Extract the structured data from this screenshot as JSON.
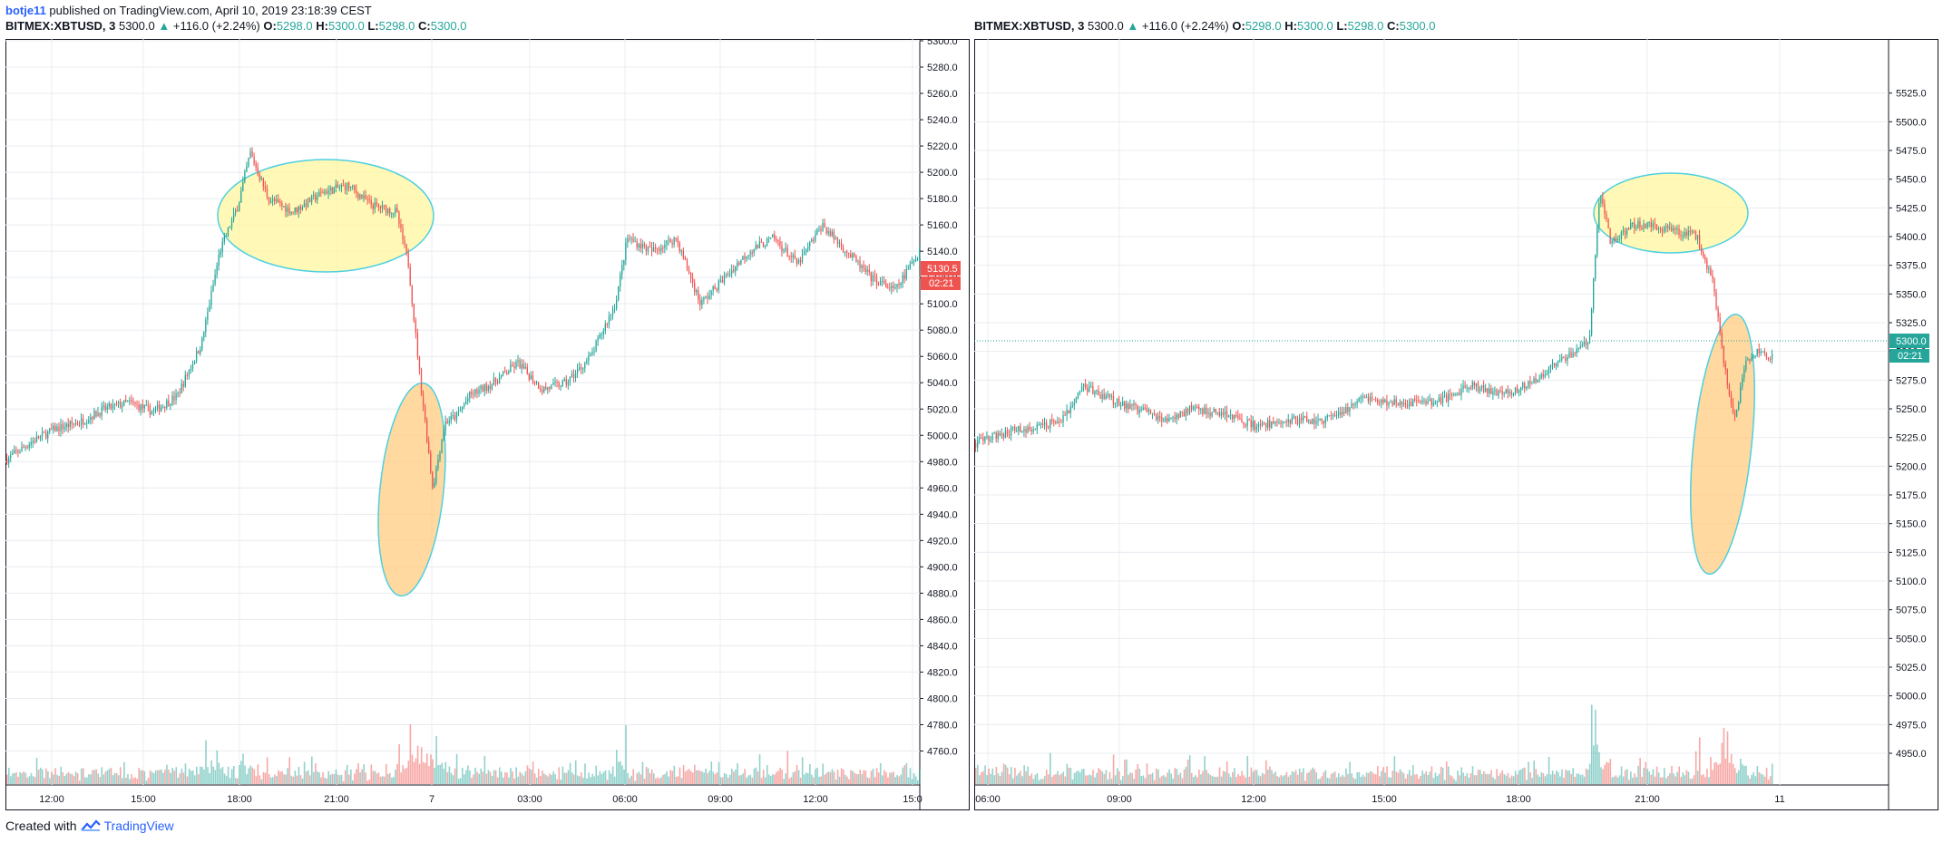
{
  "header": {
    "user": "botje11",
    "published_text": "published on TradingView.com, April 10, 2019 23:18:39 CEST"
  },
  "panels": [
    {
      "symbol": "BITMEX:XBTUSD, 3",
      "price": "5300.0",
      "change": "+116.0 (+2.24%)",
      "o": "5298.0",
      "h": "5300.0",
      "l": "5298.0",
      "c": "5300.0",
      "price_tag": "5130.5",
      "countdown": "02:21"
    },
    {
      "symbol": "BITMEX:XBTUSD, 3",
      "price": "5300.0",
      "change": "+116.0 (+2.24%)",
      "o": "5298.0",
      "h": "5300.0",
      "l": "5298.0",
      "c": "5300.0",
      "price_tag": "5300.0",
      "countdown": "02:21"
    }
  ],
  "labels": {
    "o": "O:",
    "h": "H:",
    "l": "L:",
    "c": "C:"
  },
  "footer": {
    "created_with": "Created with",
    "brand": "TradingView"
  },
  "colors": {
    "up": "#26a69a",
    "down": "#ef5350",
    "tag": "#ef5350",
    "tag_up": "#26a69a",
    "highlight_yellow": "#fff59d",
    "highlight_orange": "#ffcc80",
    "ellipse_stroke": "#4dd0e1"
  },
  "chart_data": [
    {
      "type": "candlestick",
      "ylim": [
        4750,
        5300
      ],
      "y_ticks": [
        "5300.0",
        "5280.0",
        "5260.0",
        "5240.0",
        "5220.0",
        "5200.0",
        "5180.0",
        "5160.0",
        "5140.0",
        "5120.0",
        "5100.0",
        "5080.0",
        "5060.0",
        "5040.0",
        "5020.0",
        "5000.0",
        "4980.0",
        "4960.0",
        "4940.0",
        "4920.0",
        "4900.0",
        "4880.0",
        "4860.0",
        "4840.0",
        "4820.0",
        "4800.0",
        "4780.0",
        "4760.0"
      ],
      "x_ticks": [
        "12:00",
        "15:00",
        "18:00",
        "21:00",
        "7",
        "03:00",
        "06:00",
        "09:00",
        "12:00",
        "15:0"
      ],
      "close_path": [
        [
          0,
          4982
        ],
        [
          4,
          4995
        ],
        [
          8,
          5005
        ],
        [
          12,
          5010
        ],
        [
          16,
          5020
        ],
        [
          20,
          5025
        ],
        [
          24,
          5018
        ],
        [
          28,
          5030
        ],
        [
          32,
          5070
        ],
        [
          35,
          5140
        ],
        [
          38,
          5175
        ],
        [
          40,
          5215
        ],
        [
          43,
          5180
        ],
        [
          47,
          5170
        ],
        [
          52,
          5185
        ],
        [
          56,
          5190
        ],
        [
          60,
          5175
        ],
        [
          64,
          5170
        ],
        [
          66,
          5130
        ],
        [
          68,
          5040
        ],
        [
          70,
          4960
        ],
        [
          72,
          5010
        ],
        [
          74,
          5015
        ],
        [
          76,
          5030
        ],
        [
          80,
          5040
        ],
        [
          84,
          5055
        ],
        [
          88,
          5035
        ],
        [
          92,
          5040
        ],
        [
          96,
          5060
        ],
        [
          100,
          5100
        ],
        [
          102,
          5150
        ],
        [
          106,
          5140
        ],
        [
          110,
          5150
        ],
        [
          114,
          5100
        ],
        [
          118,
          5120
        ],
        [
          122,
          5140
        ],
        [
          126,
          5150
        ],
        [
          130,
          5130
        ],
        [
          134,
          5160
        ],
        [
          138,
          5140
        ],
        [
          142,
          5120
        ],
        [
          146,
          5110
        ],
        [
          150,
          5140
        ]
      ]
    },
    {
      "type": "candlestick",
      "ylim": [
        4935,
        5550
      ],
      "y_ticks": [
        "5525.0",
        "5500.0",
        "5475.0",
        "5450.0",
        "5425.0",
        "5400.0",
        "5375.0",
        "5350.0",
        "5325.0",
        "5300.0",
        "5275.0",
        "5250.0",
        "5225.0",
        "5200.0",
        "5175.0",
        "5150.0",
        "5125.0",
        "5100.0",
        "5075.0",
        "5050.0",
        "5025.0",
        "5000.0",
        "4975.0",
        "4950.0"
      ],
      "x_ticks": [
        "06:00",
        "09:00",
        "12:00",
        "15:00",
        "18:00",
        "21:00",
        "11"
      ],
      "close_path": [
        [
          0,
          5220
        ],
        [
          6,
          5230
        ],
        [
          12,
          5235
        ],
        [
          16,
          5240
        ],
        [
          20,
          5270
        ],
        [
          24,
          5260
        ],
        [
          30,
          5250
        ],
        [
          36,
          5240
        ],
        [
          40,
          5250
        ],
        [
          46,
          5245
        ],
        [
          52,
          5235
        ],
        [
          58,
          5240
        ],
        [
          64,
          5240
        ],
        [
          68,
          5245
        ],
        [
          72,
          5260
        ],
        [
          76,
          5255
        ],
        [
          80,
          5255
        ],
        [
          84,
          5255
        ],
        [
          88,
          5260
        ],
        [
          92,
          5270
        ],
        [
          96,
          5265
        ],
        [
          100,
          5265
        ],
        [
          104,
          5275
        ],
        [
          108,
          5290
        ],
        [
          112,
          5300
        ],
        [
          114,
          5310
        ],
        [
          116,
          5440
        ],
        [
          118,
          5395
        ],
        [
          122,
          5410
        ],
        [
          126,
          5410
        ],
        [
          130,
          5405
        ],
        [
          134,
          5400
        ],
        [
          137,
          5360
        ],
        [
          139,
          5290
        ],
        [
          141,
          5240
        ],
        [
          143,
          5290
        ],
        [
          145,
          5300
        ],
        [
          148,
          5295
        ]
      ]
    }
  ]
}
